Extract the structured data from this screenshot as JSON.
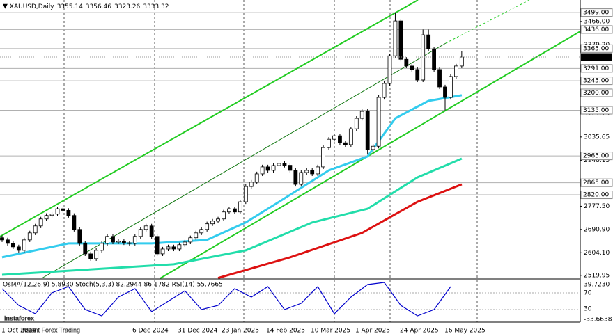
{
  "chart_data": {
    "type": "candlestick",
    "title": "XAUUSD,Daily",
    "title_values": [
      3355.14,
      3356.46,
      3323.26,
      3333.32
    ],
    "ylim": [
      2509,
      3546
    ],
    "yticks": [
      {
        "value": 3466,
        "label": "3466.00"
      },
      {
        "value": 3379.2,
        "label": "3379.20"
      },
      {
        "value": 3121.75,
        "label": "3121.75"
      },
      {
        "value": 3035.65,
        "label": "3035.65"
      },
      {
        "value": 2948.15,
        "label": "2948.15"
      },
      {
        "value": 2777.5,
        "label": "2777.50"
      },
      {
        "value": 2690.9,
        "label": "2690.90"
      },
      {
        "value": 2604.1,
        "label": "2604.10"
      },
      {
        "value": 2519.95,
        "label": "2519.95"
      }
    ],
    "levels": [
      {
        "value": 3499,
        "label": "3499.00"
      },
      {
        "value": 3436,
        "label": "3436.00"
      },
      {
        "value": 3365,
        "label": "3365.00"
      },
      {
        "value": 3291,
        "label": "3291.00"
      },
      {
        "value": 3245,
        "label": "3245.00"
      },
      {
        "value": 3200,
        "label": "3200.00"
      },
      {
        "value": 3135,
        "label": "3135.00"
      },
      {
        "value": 2965,
        "label": "2965.00"
      },
      {
        "value": 2865,
        "label": "2865.00"
      },
      {
        "value": 2820,
        "label": "2820.00"
      }
    ],
    "current_price": {
      "value": 3333.32,
      "label": "3333.32"
    },
    "x_labels": [
      "1 Oct 2024",
      "6 Dec 2024",
      "31 Dec 2024",
      "23 Jan 2025",
      "14 Feb 2025",
      "10 Mar 2025",
      "1 Apr 2025",
      "24 Apr 2025",
      "16 May 2025"
    ],
    "open": [
      2660,
      2652,
      2639,
      2626,
      2613,
      2652,
      2678,
      2704,
      2730,
      2743,
      2748,
      2768,
      2762,
      2743,
      2691,
      2639,
      2600,
      2582,
      2613,
      2639,
      2665,
      2644,
      2648,
      2641,
      2639,
      2665,
      2691,
      2704,
      2665,
      2600,
      2618,
      2626,
      2618,
      2634,
      2644,
      2660,
      2678,
      2691,
      2712,
      2722,
      2730,
      2756,
      2768,
      2756,
      2794,
      2851,
      2867,
      2898,
      2924,
      2911,
      2929,
      2937,
      2930,
      2911,
      2859,
      2903,
      2911,
      2898,
      2924,
      2996,
      3027,
      3040,
      3014,
      3007,
      3066,
      3105,
      3131,
      2989,
      3001,
      3183,
      3235,
      3338,
      3468,
      3325,
      3300,
      3287,
      3248,
      3416,
      3364,
      3287,
      3222,
      3183,
      3261,
      3300
    ],
    "high": [
      2668,
      2660,
      2647,
      2634,
      2660,
      2686,
      2712,
      2738,
      2751,
      2756,
      2776,
      2776,
      2770,
      2751,
      2699,
      2647,
      2608,
      2621,
      2647,
      2673,
      2673,
      2656,
      2656,
      2649,
      2673,
      2699,
      2712,
      2712,
      2673,
      2626,
      2634,
      2634,
      2642,
      2652,
      2668,
      2686,
      2699,
      2720,
      2730,
      2738,
      2764,
      2776,
      2776,
      2802,
      2859,
      2875,
      2906,
      2932,
      2932,
      2937,
      2945,
      2945,
      2938,
      2919,
      2911,
      2919,
      2919,
      2932,
      3004,
      3035,
      3048,
      3048,
      3022,
      3074,
      3113,
      3139,
      3139,
      3009,
      3191,
      3243,
      3346,
      3500,
      3476,
      3333,
      3308,
      3295,
      3436,
      3436,
      3372,
      3295,
      3230,
      3269,
      3308,
      3356.46
    ],
    "low": [
      2644,
      2631,
      2618,
      2605,
      2605,
      2644,
      2670,
      2696,
      2722,
      2735,
      2740,
      2754,
      2735,
      2683,
      2631,
      2592,
      2574,
      2574,
      2605,
      2631,
      2636,
      2636,
      2633,
      2631,
      2631,
      2657,
      2683,
      2657,
      2592,
      2592,
      2610,
      2610,
      2610,
      2626,
      2636,
      2652,
      2670,
      2683,
      2704,
      2714,
      2722,
      2748,
      2748,
      2748,
      2786,
      2843,
      2859,
      2890,
      2903,
      2903,
      2921,
      2922,
      2903,
      2851,
      2851,
      2895,
      2890,
      2890,
      2916,
      2988,
      3019,
      3006,
      2999,
      2999,
      3058,
      3097,
      2970,
      2975,
      2993,
      3175,
      3227,
      3330,
      3317,
      3292,
      3279,
      3240,
      3240,
      3356,
      3279,
      3214,
      3135,
      3175,
      3253,
      3292
    ],
    "close": [
      2652,
      2639,
      2626,
      2613,
      2652,
      2678,
      2704,
      2730,
      2743,
      2748,
      2768,
      2762,
      2743,
      2691,
      2639,
      2600,
      2582,
      2613,
      2639,
      2665,
      2644,
      2648,
      2641,
      2639,
      2665,
      2691,
      2704,
      2665,
      2600,
      2618,
      2626,
      2618,
      2634,
      2644,
      2660,
      2678,
      2691,
      2712,
      2722,
      2730,
      2756,
      2768,
      2756,
      2794,
      2851,
      2867,
      2898,
      2924,
      2911,
      2929,
      2937,
      2930,
      2911,
      2859,
      2903,
      2911,
      2898,
      2924,
      2996,
      3027,
      3040,
      3014,
      3007,
      3066,
      3105,
      3131,
      2989,
      3001,
      3183,
      3235,
      3338,
      3468,
      3325,
      3300,
      3287,
      3248,
      3416,
      3364,
      3287,
      3222,
      3183,
      3261,
      3300,
      3333.32
    ],
    "up_color": "#ffffff",
    "down_color": "#000000",
    "lines": [
      {
        "color": "#33ccee",
        "x": [
          0,
          12,
          27,
          37,
          44,
          50,
          59,
          66,
          71,
          77,
          83
        ],
        "values": [
          2587,
          2639,
          2639,
          2652,
          2717,
          2794,
          2911,
          2963,
          3105,
          3170,
          3191
        ]
      },
      {
        "color": "#22ddaa",
        "x": [
          0,
          31,
          44,
          56,
          66,
          75,
          83
        ],
        "values": [
          2522,
          2561,
          2613,
          2717,
          2768,
          2885,
          2955
        ]
      },
      {
        "color": "#dd1111",
        "x": [
          39,
          52,
          65,
          75,
          83
        ],
        "values": [
          2510,
          2587,
          2678,
          2794,
          2859
        ]
      }
    ],
    "oscillator": {
      "text": "OsMA(12,26,9) 5.8930  Stoch(5,3,3) 82.2944 86.1782  RSI(14) 55.7665",
      "labels": [
        "39.7230",
        "70",
        "30",
        "-33.6638"
      ],
      "color": "#0000cc",
      "x": [
        0,
        3,
        6,
        9,
        12,
        15,
        18,
        21,
        24,
        27,
        30,
        33,
        36,
        39,
        42,
        45,
        48,
        51,
        54,
        57,
        60,
        63,
        66,
        69,
        72,
        75,
        78,
        81
      ],
      "values": [
        80,
        40,
        20,
        70,
        85,
        30,
        15,
        60,
        80,
        25,
        50,
        75,
        30,
        40,
        80,
        60,
        85,
        30,
        45,
        85,
        20,
        60,
        90,
        95,
        40,
        15,
        30,
        85
      ]
    },
    "watermark": [
      "instaforex",
      "Instant Forex Trading"
    ]
  }
}
